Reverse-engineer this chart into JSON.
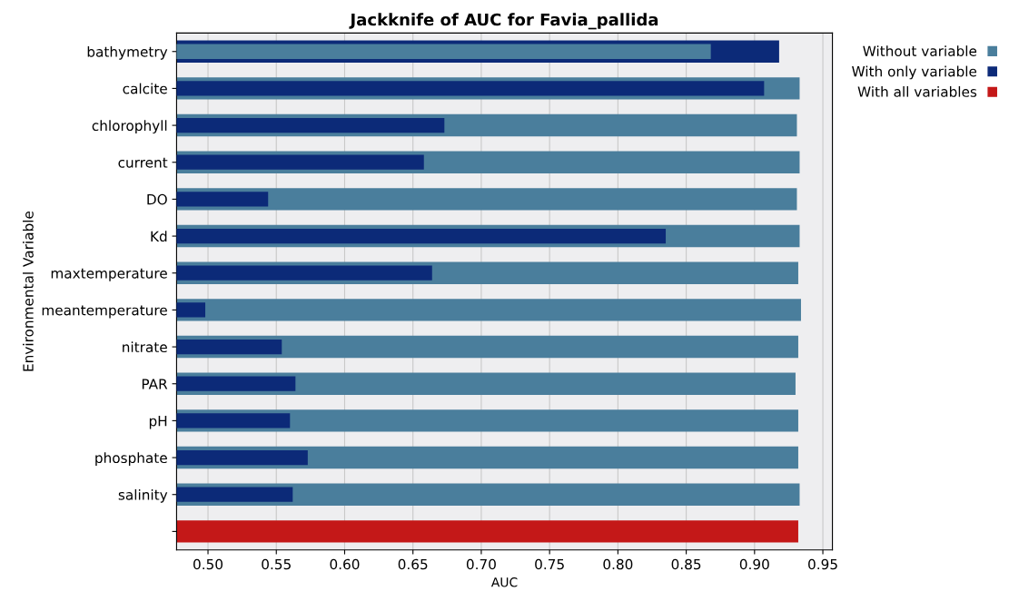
{
  "chart_data": {
    "type": "bar",
    "orientation": "horizontal",
    "title": "Jackknife of AUC for Favia_pallida",
    "xlabel": "AUC",
    "ylabel": "Environmental Variable",
    "categories": [
      "bathymetry",
      "calcite",
      "chlorophyll",
      "current",
      "DO",
      "Kd",
      "maxtemperature",
      "meantemperature",
      "nitrate",
      "PAR",
      "pH",
      "phosphate",
      "salinity",
      null
    ],
    "series": [
      {
        "name": "Without variable",
        "color": "#4a7e9c",
        "values": [
          0.868,
          0.933,
          0.931,
          0.933,
          0.931,
          0.933,
          0.932,
          0.934,
          0.932,
          0.93,
          0.932,
          0.932,
          0.933,
          null
        ]
      },
      {
        "name": "With only variable",
        "color": "#0c2a78",
        "values": [
          0.918,
          0.907,
          0.673,
          0.658,
          0.544,
          0.835,
          0.664,
          0.498,
          0.554,
          0.564,
          0.56,
          0.573,
          0.562,
          null
        ]
      },
      {
        "name": "With all variables",
        "color": "#c41818",
        "values": [
          null,
          null,
          null,
          null,
          null,
          null,
          null,
          null,
          null,
          null,
          null,
          null,
          null,
          0.932
        ]
      }
    ],
    "xlim": [
      0.477,
      0.957
    ],
    "xticks": [
      {
        "value": 0.5,
        "label": "0.50"
      },
      0.55,
      {
        "value": 0.6,
        "label": "0.60"
      },
      0.65,
      {
        "value": 0.7,
        "label": "0.70"
      },
      0.75,
      {
        "value": 0.8,
        "label": "0.80"
      },
      0.85,
      {
        "value": 0.9,
        "label": "0.90"
      },
      0.95
    ],
    "grid": "x",
    "legend": "top right"
  }
}
